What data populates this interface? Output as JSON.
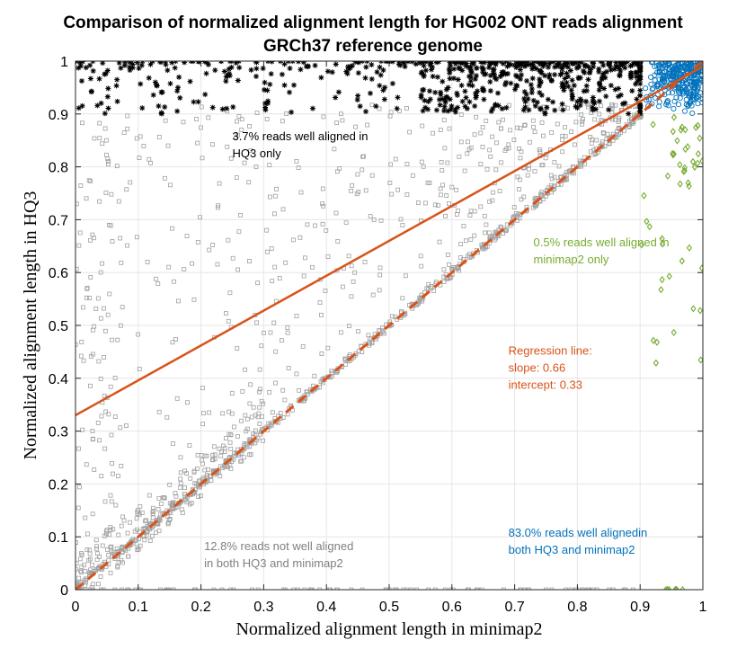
{
  "chart_data": {
    "type": "scatter",
    "title": [
      "Comparison of normalized alignment length for HG002 ONT reads alignment",
      "GRCh37 reference genome"
    ],
    "xlabel": "Normalized alignment length in minimap2",
    "ylabel": "Normalized alignment length in HQ3",
    "xlim": [
      0,
      1
    ],
    "ylim": [
      0,
      1
    ],
    "xticks": [
      "0",
      "0.1",
      "0.2",
      "0.3",
      "0.4",
      "0.5",
      "0.6",
      "0.7",
      "0.8",
      "0.9",
      "1"
    ],
    "yticks": [
      "0",
      "0.1",
      "0.2",
      "0.3",
      "0.4",
      "0.5",
      "0.6",
      "0.7",
      "0.8",
      "0.9",
      "1"
    ],
    "grid": true,
    "series": [
      {
        "name": "reads not well aligned in both",
        "marker": "square",
        "color": "#a0a0a0",
        "count": 1400
      },
      {
        "name": "reads well aligned in HQ3 only",
        "marker": "asterisk",
        "color": "#000000",
        "count": 650
      },
      {
        "name": "reads well aligned in minimap2 only",
        "marker": "diamond",
        "color": "#77ac30",
        "count": 55
      },
      {
        "name": "reads well aligned in both",
        "marker": "circle",
        "color": "#0072bd",
        "count": 300
      }
    ],
    "regression": {
      "slope": 0.66,
      "intercept": 0.33,
      "color": "#d95319"
    },
    "identity_line": {
      "x": [
        0,
        1
      ],
      "y": [
        0,
        1
      ],
      "style": "dashed",
      "color": "#d95319"
    },
    "annotations": [
      {
        "lines": [
          "3.7% reads well aligned in",
          "HQ3 only"
        ],
        "x": 0.25,
        "y": 0.85,
        "color": "#000000"
      },
      {
        "lines": [
          "0.5% reads well aligned in",
          "minimap2 only"
        ],
        "x": 0.73,
        "y": 0.65,
        "color": "#77ac30"
      },
      {
        "lines": [
          "Regression line:",
          "slope: 0.66",
          "intercept: 0.33"
        ],
        "x": 0.69,
        "y": 0.445,
        "color": "#d95319"
      },
      {
        "lines": [
          "12.8% reads not well aligned",
          "in both HQ3 and minimap2"
        ],
        "x": 0.205,
        "y": 0.075,
        "color": "#808080"
      },
      {
        "lines": [
          "83.0% reads well alignedin",
          "both HQ3 and minimap2"
        ],
        "x": 0.69,
        "y": 0.1,
        "color": "#0072bd"
      }
    ]
  }
}
